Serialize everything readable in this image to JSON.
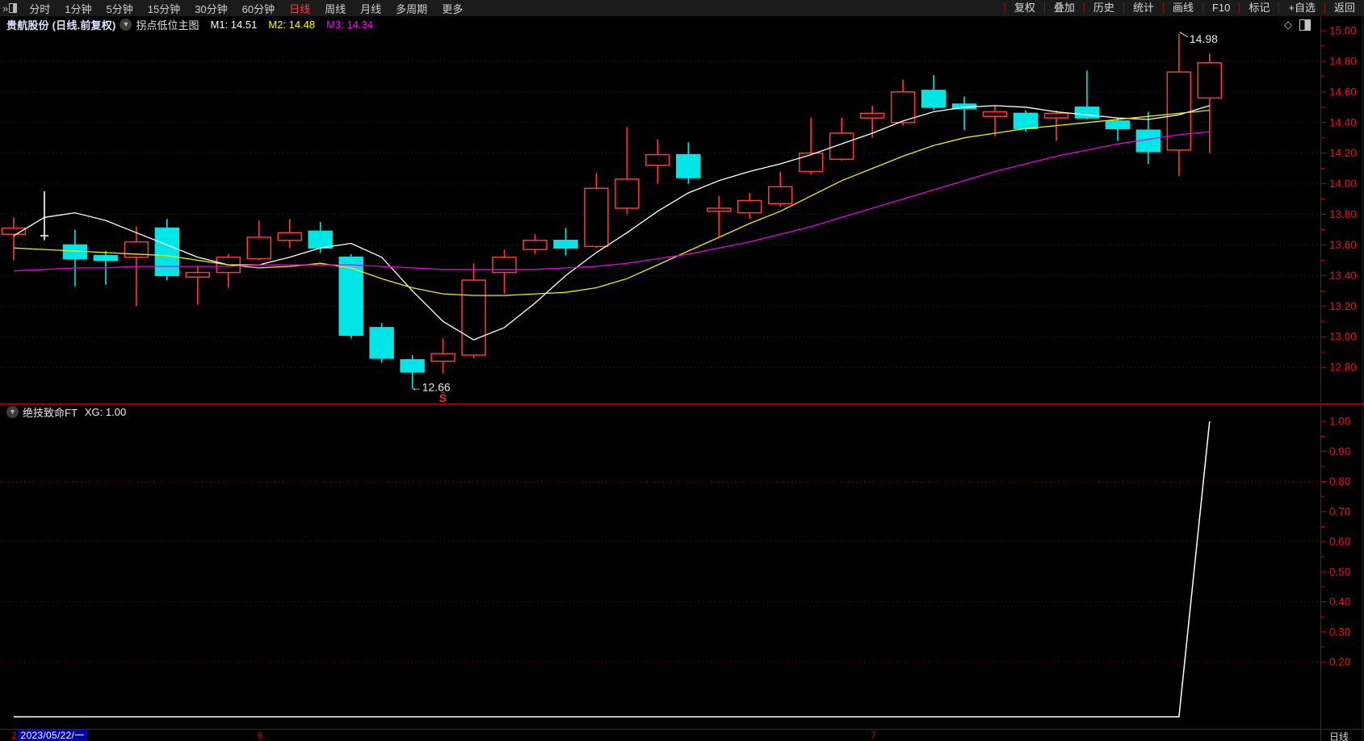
{
  "app": {
    "collapse_icon": "»"
  },
  "toolbar": {
    "tabs": [
      "分时",
      "1分钟",
      "5分钟",
      "15分钟",
      "30分钟",
      "60分钟",
      "日线",
      "周线",
      "月线",
      "多周期",
      "更多"
    ],
    "active_tab": "日线",
    "right_buttons": [
      "复权",
      "叠加",
      "历史",
      "统计",
      "画线",
      "F10",
      "标记",
      "+自选",
      "返回"
    ]
  },
  "stock_bar": {
    "name": "贵航股份 (日线.前复权)",
    "dropdown_icon": "chevron-down-circle",
    "indicator_name": "拐点低位主图",
    "m1": "M1: 14.51",
    "m2": "M2: 14.48",
    "m3": "M3: 14.34"
  },
  "chart_icons": {
    "diamond": "◇",
    "split_view": "split-square-icon"
  },
  "sub_panel": {
    "name": "绝技致命FT",
    "value": "XG: 1.00"
  },
  "bottom_bar": {
    "fragment": "2",
    "date": "2023/05/22/一",
    "month_markers": [
      {
        "label": "6",
        "bar_index": 8
      },
      {
        "label": "7",
        "bar_index": 28
      }
    ],
    "period": "日线"
  },
  "colors": {
    "up": "#ff3838",
    "down": "#00e6e6",
    "doji": "#ffffff",
    "axis_text": "#ee1111",
    "grid": "#8e0000",
    "axis_line": "#a00000",
    "divider": "#aa0000",
    "ma1": "#ffffff",
    "ma2": "#eeee00",
    "ma3": "#e800e8",
    "indicator_line": "#ffffff",
    "annotation_text": "#e8e8e8",
    "signal": "#ff2222"
  },
  "chart_data": [
    {
      "type": "candlestick",
      "title": "贵航股份 日线 前复权",
      "y_axis": {
        "max": 15.0,
        "min": 12.8,
        "step": 0.2,
        "minor_step": 0.1,
        "labels": [
          "15.00",
          "14.80",
          "14.60",
          "14.40",
          "14.20",
          "14.00",
          "13.80",
          "13.60",
          "13.40",
          "13.20",
          "13.00",
          "12.80"
        ]
      },
      "candles": [
        [
          13.67,
          13.78,
          13.5,
          13.71
        ],
        [
          13.66,
          13.95,
          13.63,
          13.66
        ],
        [
          13.6,
          13.7,
          13.33,
          13.51
        ],
        [
          13.53,
          13.56,
          13.34,
          13.5
        ],
        [
          13.52,
          13.72,
          13.2,
          13.62
        ],
        [
          13.71,
          13.77,
          13.37,
          13.4
        ],
        [
          13.39,
          13.46,
          13.21,
          13.42
        ],
        [
          13.42,
          13.54,
          13.32,
          13.52
        ],
        [
          13.51,
          13.76,
          13.5,
          13.65
        ],
        [
          13.63,
          13.77,
          13.58,
          13.68
        ],
        [
          13.69,
          13.75,
          13.55,
          13.58
        ],
        [
          13.52,
          13.54,
          12.99,
          13.01
        ],
        [
          13.06,
          13.09,
          12.83,
          12.86
        ],
        [
          12.85,
          12.88,
          12.66,
          12.77
        ],
        [
          12.84,
          12.99,
          12.76,
          12.89
        ],
        [
          12.88,
          13.48,
          12.86,
          13.37
        ],
        [
          13.42,
          13.57,
          13.28,
          13.52
        ],
        [
          13.57,
          13.67,
          13.54,
          13.63
        ],
        [
          13.63,
          13.71,
          13.53,
          13.58
        ],
        [
          13.59,
          14.07,
          13.58,
          13.97
        ],
        [
          13.84,
          14.37,
          13.8,
          14.03
        ],
        [
          14.12,
          14.29,
          14.0,
          14.19
        ],
        [
          14.19,
          14.27,
          14.0,
          14.04
        ],
        [
          13.82,
          13.92,
          13.65,
          13.84
        ],
        [
          13.81,
          13.94,
          13.77,
          13.89
        ],
        [
          13.87,
          14.08,
          13.85,
          13.98
        ],
        [
          14.08,
          14.43,
          14.06,
          14.2
        ],
        [
          14.16,
          14.43,
          14.15,
          14.33
        ],
        [
          14.43,
          14.51,
          14.3,
          14.46
        ],
        [
          14.4,
          14.68,
          14.38,
          14.6
        ],
        [
          14.61,
          14.71,
          14.48,
          14.5
        ],
        [
          14.52,
          14.57,
          14.35,
          14.49
        ],
        [
          14.44,
          14.51,
          14.31,
          14.47
        ],
        [
          14.46,
          14.48,
          14.34,
          14.36
        ],
        [
          14.43,
          14.48,
          14.28,
          14.46
        ],
        [
          14.5,
          14.74,
          14.42,
          14.43
        ],
        [
          14.41,
          14.43,
          14.28,
          14.36
        ],
        [
          14.35,
          14.47,
          14.13,
          14.21
        ],
        [
          14.22,
          14.98,
          14.05,
          14.73
        ],
        [
          14.56,
          14.85,
          14.2,
          14.79
        ]
      ],
      "overlays": [
        {
          "name": "M1",
          "color": "#ffffff",
          "values": [
            13.66,
            13.78,
            13.81,
            13.76,
            13.68,
            13.6,
            13.52,
            13.47,
            13.47,
            13.52,
            13.58,
            13.61,
            13.52,
            13.3,
            13.1,
            12.98,
            13.06,
            13.22,
            13.4,
            13.55,
            13.68,
            13.82,
            13.94,
            14.02,
            14.08,
            14.13,
            14.19,
            14.26,
            14.33,
            14.41,
            14.47,
            14.5,
            14.51,
            14.5,
            14.47,
            14.45,
            14.43,
            14.42,
            14.45,
            14.51
          ]
        },
        {
          "name": "M2",
          "color": "#eeee00",
          "values": [
            13.58,
            13.57,
            13.56,
            13.55,
            13.54,
            13.53,
            13.5,
            13.47,
            13.45,
            13.46,
            13.48,
            13.45,
            13.38,
            13.32,
            13.28,
            13.27,
            13.27,
            13.28,
            13.29,
            13.32,
            13.38,
            13.47,
            13.56,
            13.65,
            13.74,
            13.82,
            13.92,
            14.02,
            14.1,
            14.18,
            14.25,
            14.3,
            14.33,
            14.36,
            14.38,
            14.4,
            14.42,
            14.44,
            14.46,
            14.48
          ]
        },
        {
          "name": "M3",
          "color": "#e800e8",
          "values": [
            13.43,
            13.44,
            13.45,
            13.45,
            13.46,
            13.46,
            13.46,
            13.46,
            13.47,
            13.47,
            13.47,
            13.47,
            13.46,
            13.45,
            13.44,
            13.44,
            13.44,
            13.44,
            13.45,
            13.46,
            13.48,
            13.51,
            13.54,
            13.58,
            13.62,
            13.67,
            13.72,
            13.78,
            13.84,
            13.9,
            13.96,
            14.02,
            14.08,
            14.13,
            14.18,
            14.22,
            14.26,
            14.29,
            14.32,
            14.34
          ]
        }
      ],
      "annotations": [
        {
          "type": "high-callout",
          "text": "14.98",
          "bar_index": 38
        },
        {
          "type": "low-callout",
          "text": "←12.66",
          "bar_index": 13
        },
        {
          "type": "signal-marker",
          "text": "Ŝ",
          "bar_index": 14
        }
      ]
    },
    {
      "type": "line",
      "title": "绝技致命FT",
      "y_axis": {
        "max": 1.0,
        "min": 0.2,
        "step": 0.1,
        "labels": [
          "1.00",
          "0.90",
          "0.80",
          "0.70",
          "0.60",
          "0.50",
          "0.40",
          "0.30",
          "0.20"
        ],
        "grid_at": [
          0.8,
          0.6,
          0.4,
          0.2
        ]
      },
      "series": [
        {
          "name": "XG",
          "color": "#ffffff",
          "values": [
            0,
            0,
            0,
            0,
            0,
            0,
            0,
            0,
            0,
            0,
            0,
            0,
            0,
            0,
            0,
            0,
            0,
            0,
            0,
            0,
            0,
            0,
            0,
            0,
            0,
            0,
            0,
            0,
            0,
            0,
            0,
            0,
            0,
            0,
            0,
            0,
            0,
            0,
            0,
            1.0
          ]
        }
      ]
    }
  ]
}
